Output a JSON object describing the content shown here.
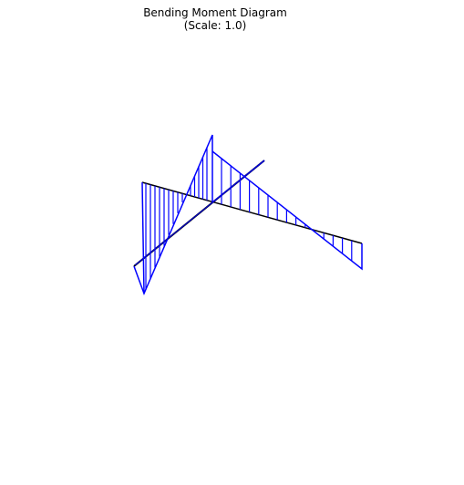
{
  "title": {
    "line1": "Bending Moment Diagram",
    "line2": "(Scale: 1.0)"
  },
  "colors": {
    "frame": "#000000",
    "moment": "#0000ff",
    "background": "#ffffff"
  },
  "diagram": {
    "type": "3d-frame-bending-moment",
    "members": [
      "member-1",
      "member-2"
    ],
    "hatching": true
  }
}
